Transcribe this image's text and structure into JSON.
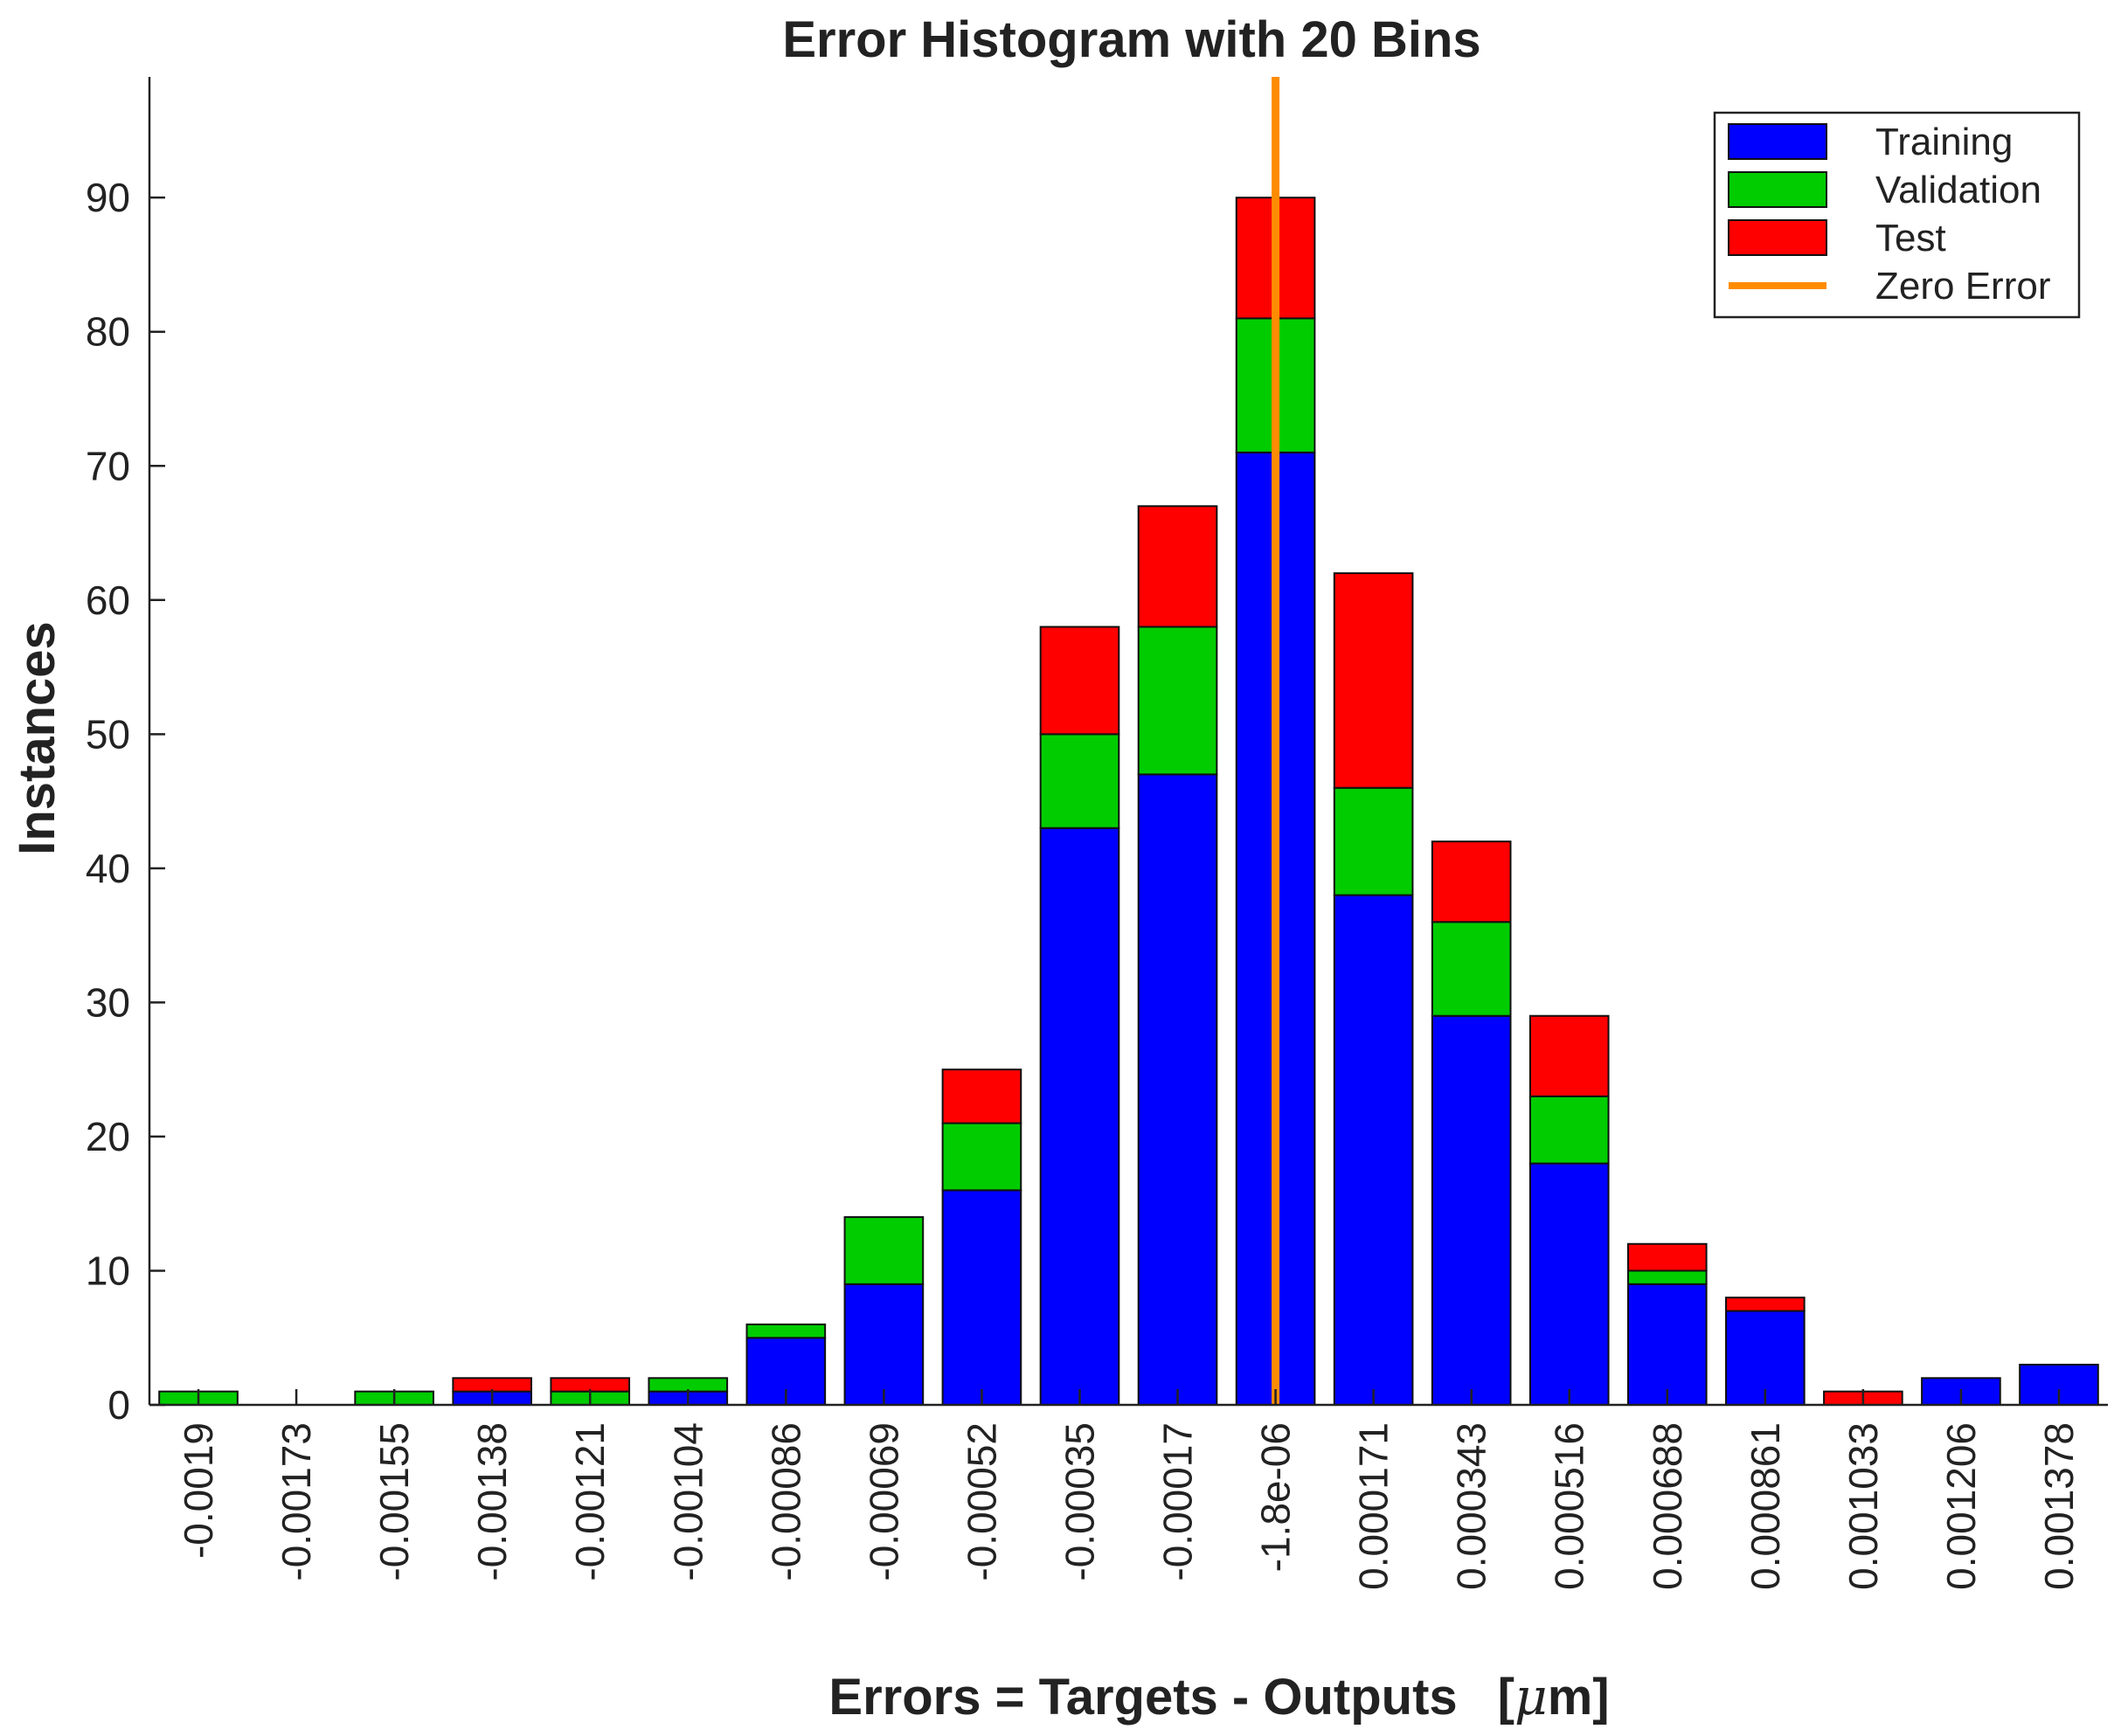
{
  "chart_data": {
    "type": "bar",
    "stacked": true,
    "title": "Error Histogram with 20 Bins",
    "xlabel": "Errors = Targets - Outputs",
    "xlabel_unit_prefix": "[",
    "xlabel_unit_mu": "μ",
    "xlabel_unit_rest": "m]",
    "ylabel": "Instances",
    "ylim": [
      0,
      99
    ],
    "yticks": [
      0,
      10,
      20,
      30,
      40,
      50,
      60,
      70,
      80,
      90
    ],
    "categories": [
      "-0.0019",
      "-0.00173",
      "-0.00155",
      "-0.00138",
      "-0.00121",
      "-0.00104",
      "-0.00086",
      "-0.00069",
      "-0.00052",
      "-0.00035",
      "-0.00017",
      "-1.8e-06",
      "0.000171",
      "0.000343",
      "0.000516",
      "0.000688",
      "0.000861",
      "0.001033",
      "0.001206",
      "0.001378"
    ],
    "series": [
      {
        "name": "Training",
        "color": "#0000ff",
        "values": [
          0,
          0,
          0,
          1,
          0,
          1,
          5,
          9,
          16,
          43,
          47,
          71,
          38,
          29,
          18,
          9,
          7,
          0,
          2,
          3
        ]
      },
      {
        "name": "Validation",
        "color": "#00cc00",
        "values": [
          1,
          0,
          1,
          0,
          1,
          1,
          1,
          5,
          5,
          7,
          11,
          10,
          8,
          7,
          5,
          1,
          0,
          0,
          0,
          0
        ]
      },
      {
        "name": "Test",
        "color": "#ff0000",
        "values": [
          0,
          0,
          0,
          1,
          1,
          0,
          0,
          0,
          4,
          8,
          9,
          9,
          16,
          6,
          6,
          2,
          1,
          1,
          0,
          0
        ]
      }
    ],
    "reference_line": {
      "name": "Zero Error",
      "color": "#ff8c00",
      "x": 0
    },
    "legend": {
      "position": "top-right",
      "entries": [
        "Training",
        "Validation",
        "Test",
        "Zero Error"
      ]
    },
    "grid": false
  }
}
